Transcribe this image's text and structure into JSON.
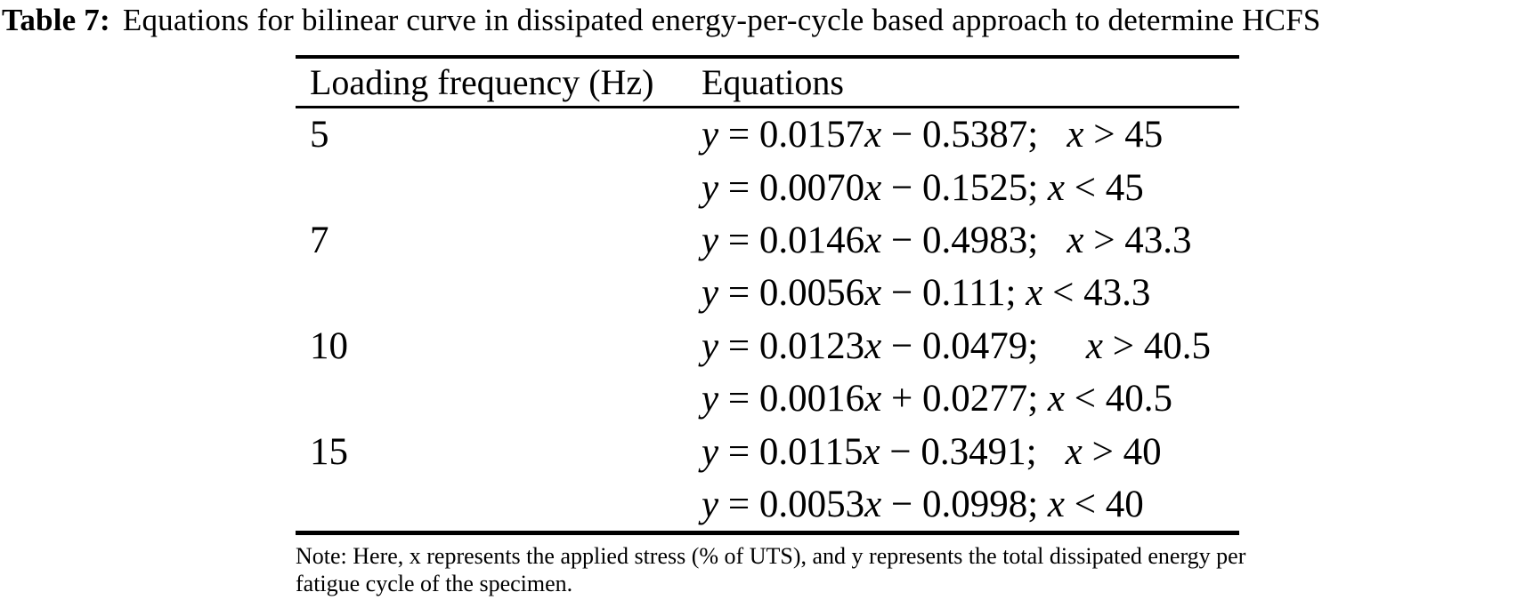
{
  "caption": {
    "label": "Table 7:",
    "text": "Equations for bilinear curve in dissipated energy-per-cycle based approach to determine HCFS"
  },
  "table": {
    "columns": {
      "frequency": "Loading frequency (Hz)",
      "equations": "Equations"
    },
    "rows": [
      {
        "frequency": "5",
        "equations": [
          "y = 0.0157x − 0.5387;   x > 45",
          "y = 0.0070x − 0.1525; x < 45"
        ]
      },
      {
        "frequency": "7",
        "equations": [
          "y = 0.0146x − 0.4983;   x > 43.3",
          "y = 0.0056x − 0.111; x < 43.3"
        ]
      },
      {
        "frequency": "10",
        "equations": [
          "y = 0.0123x − 0.0479;     x > 40.5",
          "y = 0.0016x + 0.0277; x < 40.5"
        ]
      },
      {
        "frequency": "15",
        "equations": [
          "y = 0.0115x − 0.3491;   x > 40",
          "y = 0.0053x − 0.0998; x < 40"
        ]
      }
    ]
  },
  "note": "Note: Here, x represents the applied stress (% of UTS), and y represents the total dissipated energy per fatigue cycle of the specimen.",
  "colors": {
    "text": "#000000",
    "background": "#ffffff",
    "rule": "#000000"
  }
}
